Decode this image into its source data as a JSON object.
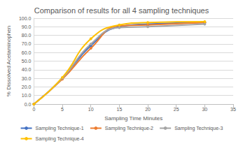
{
  "chart_data": {
    "type": "line",
    "title": "Comparison of results for all 4 sampling techniques",
    "x_label": "Sampling Time Minutes",
    "y_label": "% Dissolved Acetaminophen",
    "x": [
      0,
      5,
      10,
      15,
      20,
      30
    ],
    "series": [
      {
        "name": "Sampling Technique-1",
        "color": "#4472c4",
        "values": [
          0,
          30,
          68,
          90,
          93,
          95
        ]
      },
      {
        "name": "Sampling Technique-2",
        "color": "#ed7d31",
        "values": [
          0,
          29,
          65,
          91,
          92,
          95
        ]
      },
      {
        "name": "Sampling Technique-3",
        "color": "#a5a5a5",
        "values": [
          0,
          30,
          70,
          89,
          90,
          93
        ]
      },
      {
        "name": "Sampling Technique-4",
        "color": "#ffc000",
        "values": [
          0,
          31,
          76,
          92,
          95,
          96
        ]
      }
    ],
    "xlim": [
      0,
      35
    ],
    "xticks": [
      0,
      5,
      10,
      15,
      20,
      25,
      30,
      35
    ],
    "ylim": [
      0,
      100
    ],
    "yticks": [
      {
        "value": 0,
        "label": "0.0"
      },
      {
        "value": 10,
        "label": "10.0"
      },
      {
        "value": 20,
        "label": "20.0"
      },
      {
        "value": 30,
        "label": "30.0"
      },
      {
        "value": 40,
        "label": "40.0"
      },
      {
        "value": 50,
        "label": "50.0"
      },
      {
        "value": 60,
        "label": "60.0"
      },
      {
        "value": 70,
        "label": "70.0"
      },
      {
        "value": 80,
        "label": "80.0"
      },
      {
        "value": 90,
        "label": "90.0"
      },
      {
        "value": 100,
        "label": "100.0"
      }
    ],
    "grid": true,
    "legend": "bottom",
    "marker": "circle",
    "line_style": "smooth"
  }
}
